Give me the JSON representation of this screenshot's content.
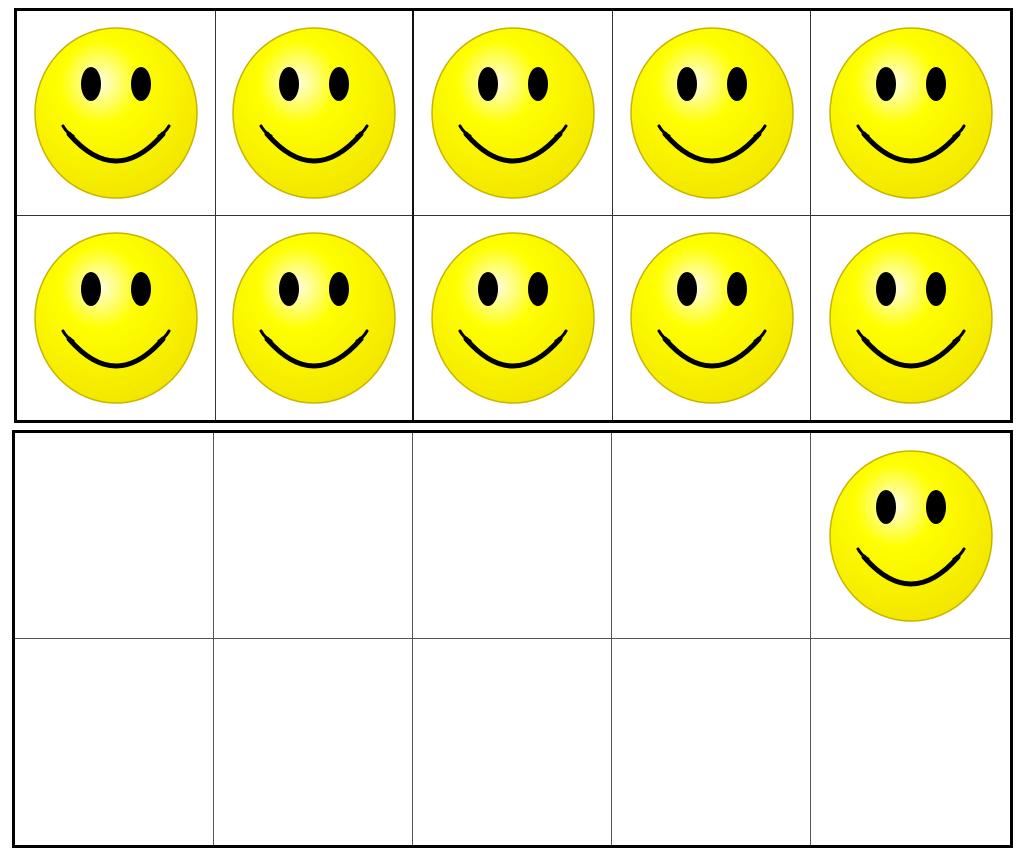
{
  "ten_frames": [
    {
      "id": "top",
      "cells": [
        {
          "filled": true
        },
        {
          "filled": true
        },
        {
          "filled": true
        },
        {
          "filled": true
        },
        {
          "filled": true
        },
        {
          "filled": true
        },
        {
          "filled": true
        },
        {
          "filled": true
        },
        {
          "filled": true
        },
        {
          "filled": true
        }
      ]
    },
    {
      "id": "bottom",
      "cells": [
        {
          "filled": false
        },
        {
          "filled": false
        },
        {
          "filled": false
        },
        {
          "filled": false
        },
        {
          "filled": true
        },
        {
          "filled": false
        },
        {
          "filled": false
        },
        {
          "filled": false
        },
        {
          "filled": false
        },
        {
          "filled": false
        }
      ]
    }
  ],
  "counter": {
    "icon": "smiley-face-icon",
    "count": 11
  },
  "colors": {
    "face_fill": "#ffff00",
    "face_highlight": "#fffde0",
    "face_outline": "#c8b400",
    "features": "#000000",
    "frame_border": "#000000",
    "background": "#ffffff"
  }
}
